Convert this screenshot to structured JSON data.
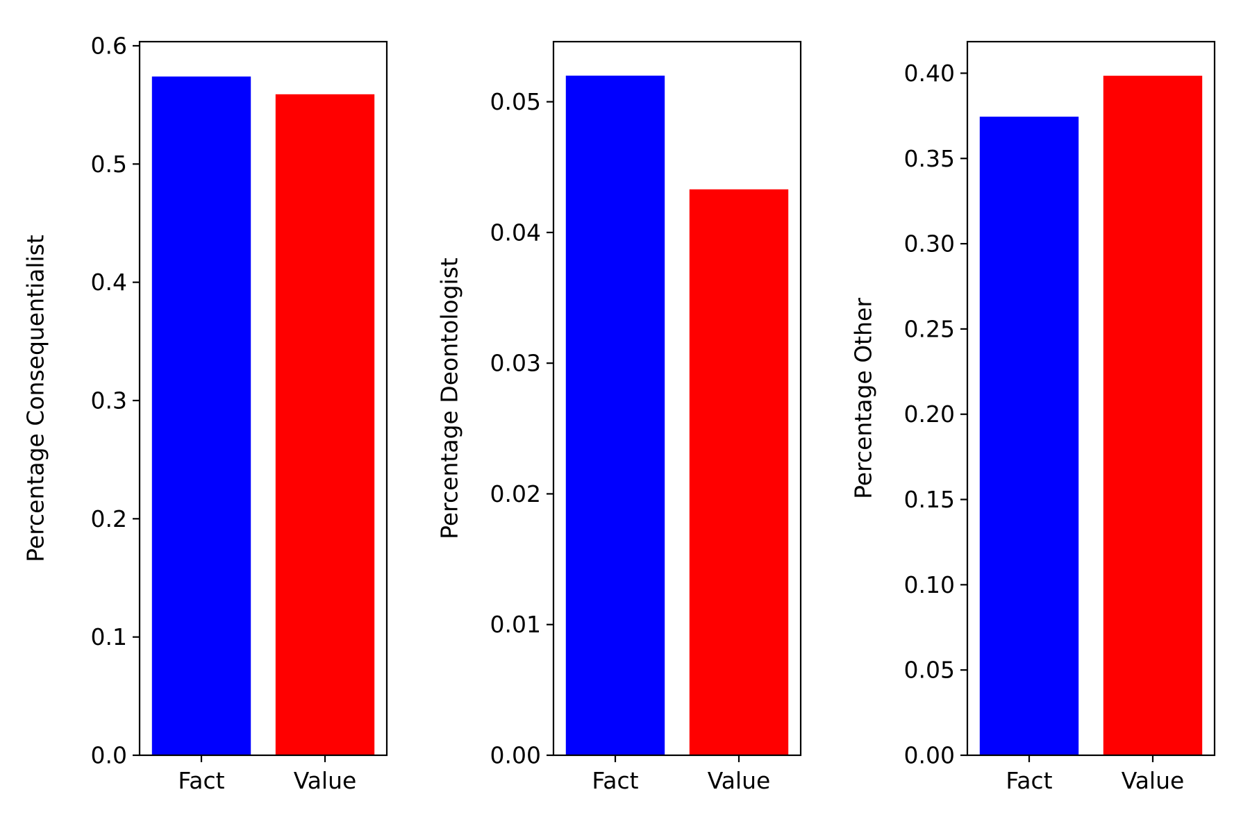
{
  "chart_data": [
    {
      "type": "bar",
      "categories": [
        "Fact",
        "Value"
      ],
      "values": [
        0.574,
        0.559
      ],
      "colors": [
        "#0000ff",
        "#ff0000"
      ],
      "title": "",
      "xlabel": "",
      "ylabel": "Percentage Consequentialist",
      "ylim": [
        0,
        0.6035
      ],
      "yticks": [
        {
          "value": 0.0,
          "label": "0.0"
        },
        {
          "value": 0.1,
          "label": "0.1"
        },
        {
          "value": 0.2,
          "label": "0.2"
        },
        {
          "value": 0.3,
          "label": "0.3"
        },
        {
          "value": 0.4,
          "label": "0.4"
        },
        {
          "value": 0.5,
          "label": "0.5"
        },
        {
          "value": 0.6,
          "label": "0.6"
        }
      ],
      "grid": false
    },
    {
      "type": "bar",
      "categories": [
        "Fact",
        "Value"
      ],
      "values": [
        0.052,
        0.0433
      ],
      "colors": [
        "#0000ff",
        "#ff0000"
      ],
      "title": "",
      "xlabel": "",
      "ylabel": "Percentage Deontologist",
      "ylim": [
        0,
        0.0546
      ],
      "yticks": [
        {
          "value": 0.0,
          "label": "0.00"
        },
        {
          "value": 0.01,
          "label": "0.01"
        },
        {
          "value": 0.02,
          "label": "0.02"
        },
        {
          "value": 0.03,
          "label": "0.03"
        },
        {
          "value": 0.04,
          "label": "0.04"
        },
        {
          "value": 0.05,
          "label": "0.05"
        }
      ],
      "grid": false
    },
    {
      "type": "bar",
      "categories": [
        "Fact",
        "Value"
      ],
      "values": [
        0.3745,
        0.3985
      ],
      "colors": [
        "#0000ff",
        "#ff0000"
      ],
      "title": "",
      "xlabel": "",
      "ylabel": "Percentage Other",
      "ylim": [
        0,
        0.4185
      ],
      "yticks": [
        {
          "value": 0.0,
          "label": "0.00"
        },
        {
          "value": 0.05,
          "label": "0.05"
        },
        {
          "value": 0.1,
          "label": "0.10"
        },
        {
          "value": 0.15,
          "label": "0.15"
        },
        {
          "value": 0.2,
          "label": "0.20"
        },
        {
          "value": 0.25,
          "label": "0.25"
        },
        {
          "value": 0.3,
          "label": "0.30"
        },
        {
          "value": 0.35,
          "label": "0.35"
        },
        {
          "value": 0.4,
          "label": "0.40"
        }
      ],
      "grid": false
    }
  ]
}
